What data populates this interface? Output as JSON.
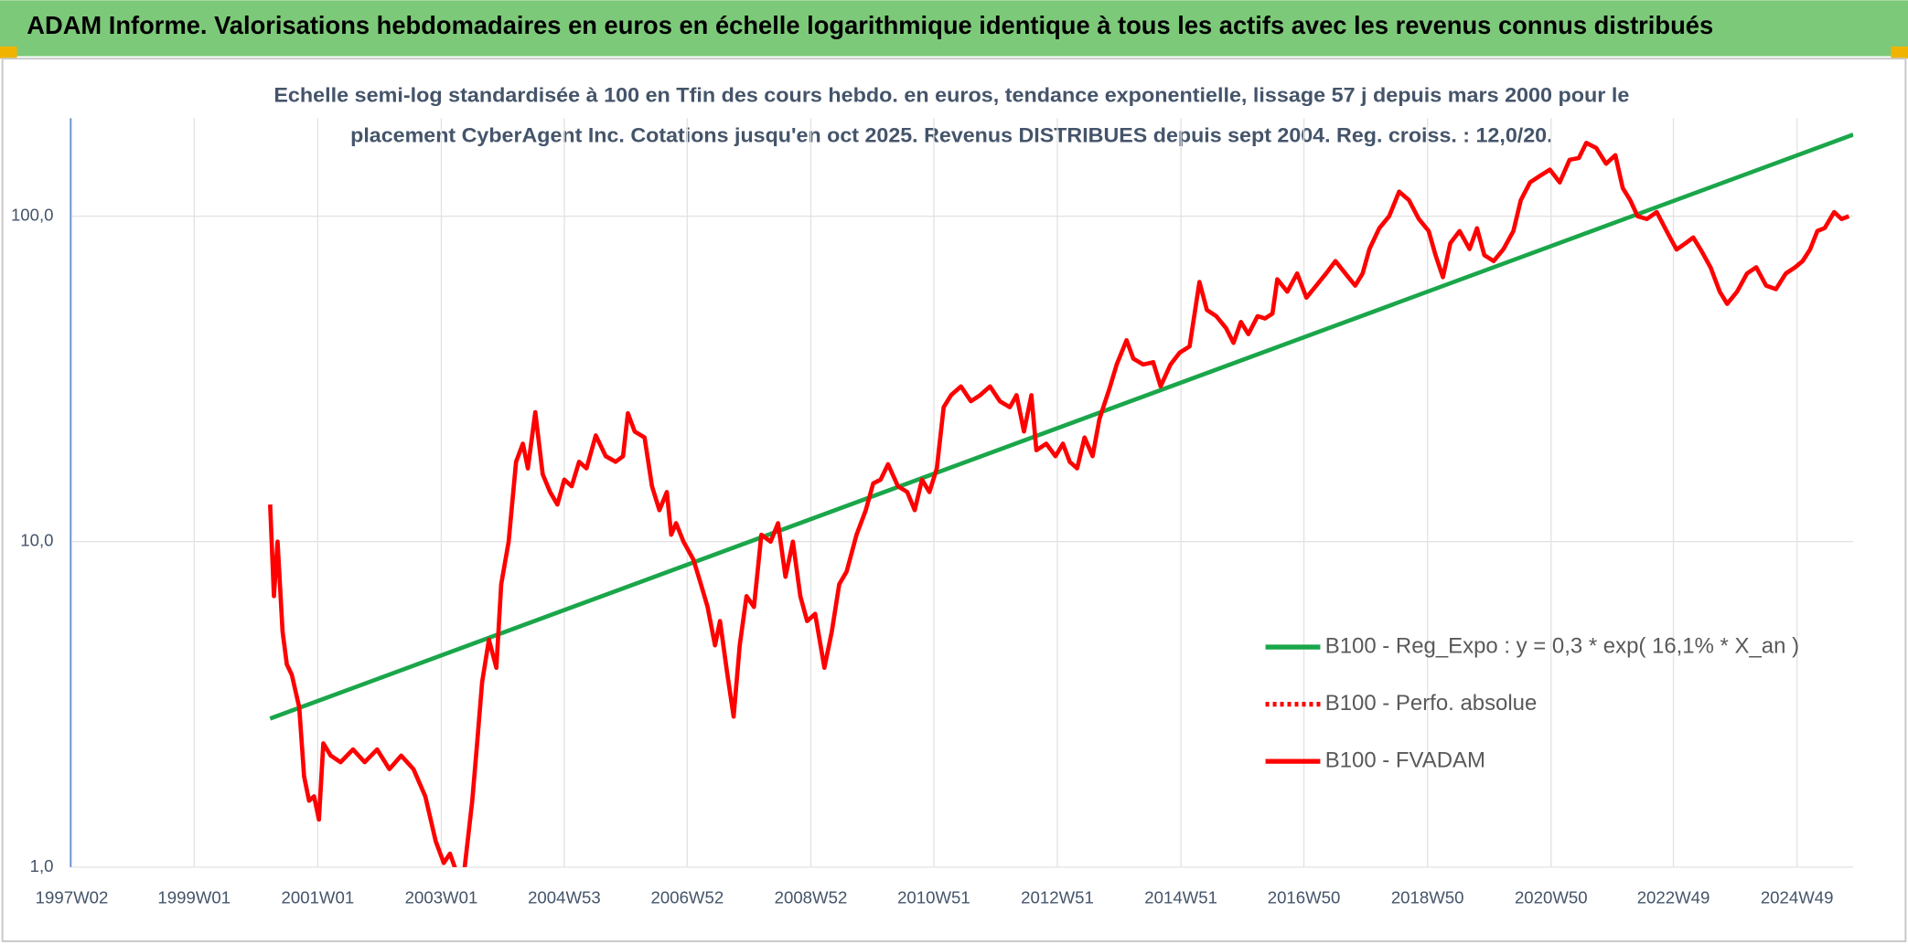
{
  "header": {
    "title": "ADAM Informe. Valorisations hebdomadaires en euros en échelle logarithmique identique à tous les actifs avec les revenus connus distribués"
  },
  "chart_data": {
    "type": "line",
    "title": [
      "Echelle semi-log standardisée à 100 en Tfin des cours hebdo. en euros, tendance exponentielle, lissage 57 j depuis mars 2000 pour le",
      "placement CyberAgent Inc. Cotations jusqu'en oct 2025. Revenus DISTRIBUES depuis sept 2004. Reg. croiss. : 12,0/20."
    ],
    "log_scale": true,
    "grid": true,
    "legend": "right",
    "xlim": [
      1997.0,
      2025.85
    ],
    "xticks": [
      {
        "value": 1997.02,
        "label": "1997W02"
      },
      {
        "value": 1999.0,
        "label": "1999W01"
      },
      {
        "value": 2001.0,
        "label": "2001W01"
      },
      {
        "value": 2003.0,
        "label": "2003W01"
      },
      {
        "value": 2004.99,
        "label": "2004W53"
      },
      {
        "value": 2006.98,
        "label": "2006W52"
      },
      {
        "value": 2008.98,
        "label": "2008W52"
      },
      {
        "value": 2010.97,
        "label": "2010W51"
      },
      {
        "value": 2012.97,
        "label": "2012W51"
      },
      {
        "value": 2014.97,
        "label": "2014W51"
      },
      {
        "value": 2016.96,
        "label": "2016W50"
      },
      {
        "value": 2018.96,
        "label": "2018W50"
      },
      {
        "value": 2020.96,
        "label": "2020W50"
      },
      {
        "value": 2022.94,
        "label": "2022W49"
      },
      {
        "value": 2024.94,
        "label": "2024W49"
      }
    ],
    "ylim": [
      1,
      200
    ],
    "yticks": [
      {
        "value": 1,
        "label": "1,0"
      },
      {
        "value": 10,
        "label": "10,0"
      },
      {
        "value": 100,
        "label": "100,0"
      }
    ],
    "series": [
      {
        "name": "B100 - Reg_Expo : y = 0,3 * exp( 16,1% *  X_an )",
        "color": "#1aa64a",
        "style": "solid",
        "x": [
          2000.23,
          2025.85
        ],
        "values": [
          2.86,
          178
        ]
      },
      {
        "name": "B100 - Perfo. absolue",
        "color": "#ff0000",
        "style": "dotted",
        "x": [],
        "values": []
      },
      {
        "name": "B100 - FVADAM",
        "color": "#ff0000",
        "style": "solid",
        "x": [
          2000.23,
          2000.29,
          2000.35,
          2000.43,
          2000.5,
          2000.58,
          2000.7,
          2000.78,
          2000.86,
          2000.94,
          2001.02,
          2001.09,
          2001.21,
          2001.37,
          2001.57,
          2001.76,
          2001.96,
          2002.16,
          2002.35,
          2002.55,
          2002.74,
          2002.91,
          2003.04,
          2003.14,
          2003.34,
          2003.5,
          2003.58,
          2003.66,
          2003.77,
          2003.89,
          2003.97,
          2004.09,
          2004.21,
          2004.32,
          2004.4,
          2004.52,
          2004.64,
          2004.76,
          2004.88,
          2004.99,
          2005.11,
          2005.23,
          2005.35,
          2005.5,
          2005.66,
          2005.82,
          2005.94,
          2006.02,
          2006.13,
          2006.29,
          2006.41,
          2006.53,
          2006.65,
          2006.72,
          2006.8,
          2006.92,
          2007.08,
          2007.2,
          2007.31,
          2007.43,
          2007.51,
          2007.63,
          2007.73,
          2007.83,
          2007.94,
          2008.06,
          2008.18,
          2008.33,
          2008.45,
          2008.57,
          2008.69,
          2008.81,
          2008.92,
          2009.05,
          2009.2,
          2009.32,
          2009.44,
          2009.56,
          2009.72,
          2009.87,
          2009.99,
          2010.11,
          2010.23,
          2010.39,
          2010.54,
          2010.66,
          2010.78,
          2010.9,
          2011.02,
          2011.13,
          2011.25,
          2011.41,
          2011.57,
          2011.72,
          2011.88,
          2012.04,
          2012.2,
          2012.31,
          2012.43,
          2012.55,
          2012.63,
          2012.79,
          2012.94,
          2013.06,
          2013.17,
          2013.29,
          2013.41,
          2013.54,
          2013.65,
          2013.81,
          2013.93,
          2014.09,
          2014.2,
          2014.36,
          2014.52,
          2014.64,
          2014.8,
          2014.95,
          2015.11,
          2015.27,
          2015.39,
          2015.54,
          2015.7,
          2015.82,
          2015.94,
          2016.06,
          2016.21,
          2016.33,
          2016.45,
          2016.53,
          2016.69,
          2016.85,
          2017.0,
          2017.16,
          2017.32,
          2017.47,
          2017.63,
          2017.79,
          2017.91,
          2018.02,
          2018.18,
          2018.34,
          2018.5,
          2018.66,
          2018.82,
          2018.98,
          2019.09,
          2019.21,
          2019.33,
          2019.48,
          2019.64,
          2019.76,
          2019.88,
          2020.03,
          2020.19,
          2020.35,
          2020.47,
          2020.62,
          2020.78,
          2020.94,
          2021.1,
          2021.26,
          2021.41,
          2021.53,
          2021.69,
          2021.85,
          2022.0,
          2022.12,
          2022.24,
          2022.36,
          2022.51,
          2022.67,
          2022.83,
          2022.99,
          2023.14,
          2023.26,
          2023.38,
          2023.54,
          2023.69,
          2023.81,
          2023.97,
          2024.13,
          2024.28,
          2024.44,
          2024.6,
          2024.76,
          2024.91,
          2025.03,
          2025.15,
          2025.27,
          2025.39,
          2025.54,
          2025.66,
          2025.78
        ],
        "values": [
          13,
          6.8,
          10,
          5.3,
          4.2,
          3.9,
          3.1,
          1.9,
          1.6,
          1.65,
          1.4,
          2.4,
          2.2,
          2.1,
          2.3,
          2.1,
          2.3,
          2.0,
          2.2,
          2.0,
          1.65,
          1.2,
          1.03,
          1.1,
          0.86,
          1.6,
          2.4,
          3.7,
          5.0,
          4.1,
          7.4,
          10,
          17.6,
          20,
          16.8,
          25,
          16.1,
          14.2,
          13,
          15.5,
          14.8,
          17.6,
          16.8,
          21.2,
          18.3,
          17.6,
          18.3,
          24.8,
          21.8,
          20.9,
          14.8,
          12.5,
          14.2,
          10.5,
          11.4,
          10,
          8.8,
          7.4,
          6.3,
          4.8,
          5.7,
          3.9,
          2.9,
          4.8,
          6.8,
          6.3,
          10.5,
          10,
          11.4,
          7.8,
          10,
          6.8,
          5.7,
          6.0,
          4.1,
          5.3,
          7.4,
          8.1,
          10.5,
          12.5,
          15.1,
          15.5,
          17.3,
          14.8,
          14.2,
          12.5,
          15.5,
          14.2,
          16.8,
          25.9,
          28.2,
          30,
          27,
          28.2,
          30,
          27,
          25.9,
          28.2,
          21.8,
          28.2,
          19.1,
          20,
          18.3,
          20,
          17.6,
          16.8,
          20.9,
          18.3,
          23.8,
          29.4,
          35,
          41.6,
          36.5,
          35,
          35.6,
          30,
          35,
          38.1,
          39.8,
          62.8,
          51.5,
          49.3,
          45.3,
          40.8,
          47.3,
          43.4,
          49.3,
          48.5,
          50.2,
          64,
          58.6,
          66.7,
          56.2,
          61.2,
          66.7,
          72.8,
          66.7,
          61.2,
          66.7,
          79.3,
          91.8,
          100,
          119,
          112,
          98,
          90,
          75.9,
          65,
          82.7,
          90,
          79.3,
          91.8,
          75.9,
          72.8,
          79.3,
          90,
          112,
          127,
          133,
          139,
          127,
          149,
          151,
          168,
          162,
          145,
          154,
          122,
          112,
          100,
          98,
          103,
          90,
          79,
          82.7,
          86,
          79,
          69.7,
          58.6,
          53.8,
          58.6,
          66.7,
          69.7,
          61.2,
          59.7,
          66.7,
          69.7,
          72.8,
          79,
          90,
          92,
          103,
          98,
          100
        ]
      }
    ]
  }
}
